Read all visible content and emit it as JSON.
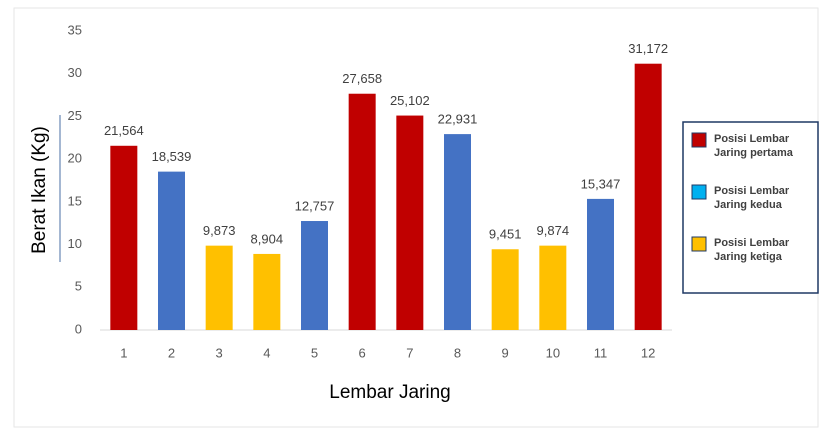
{
  "chart_data": {
    "type": "bar",
    "x_label": "Lembar Jaring",
    "y_label": "Berat Ikan (Kg)",
    "categories": [
      "1",
      "2",
      "3",
      "4",
      "5",
      "6",
      "7",
      "8",
      "9",
      "10",
      "11",
      "12"
    ],
    "values": [
      21.564,
      18.539,
      9.873,
      8.904,
      12.757,
      27.658,
      25.102,
      22.931,
      9.451,
      9.874,
      15.347,
      31.172
    ],
    "value_labels": [
      "21,564",
      "18,539",
      "9,873",
      "8,904",
      "12,757",
      "27,658",
      "25,102",
      "22,931",
      "9,451",
      "9,874",
      "15,347",
      "31,172"
    ],
    "colors": [
      "#c00000",
      "#4472c4",
      "#ffc000",
      "#ffc000",
      "#4472c4",
      "#c00000",
      "#c00000",
      "#4472c4",
      "#ffc000",
      "#ffc000",
      "#4472c4",
      "#c00000"
    ],
    "legend": [
      {
        "name": "Posisi Lembar Jaring pertama",
        "color": "#c00000"
      },
      {
        "name": "Posisi Lembar Jaring kedua",
        "color": "#00b0f0"
      },
      {
        "name": "Posisi Lembar Jaring ketiga",
        "color": "#ffc000"
      }
    ],
    "ylim": [
      0,
      35
    ],
    "yticks": [
      0,
      5,
      10,
      15,
      20,
      25,
      30,
      35
    ],
    "grid": false
  }
}
